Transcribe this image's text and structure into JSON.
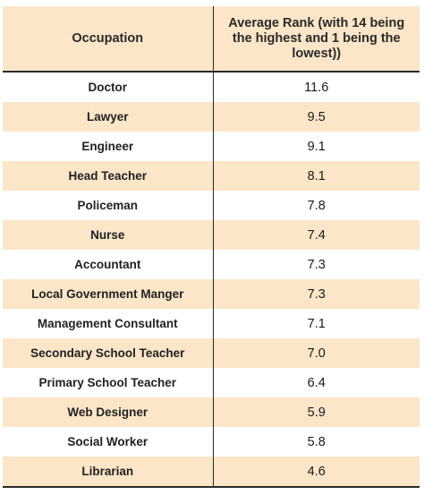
{
  "chart_data": {
    "type": "table",
    "columns": [
      "Occupation",
      "Average Rank (with 14 being the highest and 1 being the lowest))"
    ],
    "rows": [
      {
        "occupation": "Doctor",
        "rank": "11.6"
      },
      {
        "occupation": "Lawyer",
        "rank": "9.5"
      },
      {
        "occupation": "Engineer",
        "rank": "9.1"
      },
      {
        "occupation": "Head Teacher",
        "rank": "8.1"
      },
      {
        "occupation": "Policeman",
        "rank": "7.8"
      },
      {
        "occupation": "Nurse",
        "rank": "7.4"
      },
      {
        "occupation": "Accountant",
        "rank": "7.3"
      },
      {
        "occupation": "Local Government Manger",
        "rank": "7.3"
      },
      {
        "occupation": "Management Consultant",
        "rank": "7.1"
      },
      {
        "occupation": "Secondary School Teacher",
        "rank": "7.0"
      },
      {
        "occupation": "Primary School Teacher",
        "rank": "6.4"
      },
      {
        "occupation": "Web Designer",
        "rank": "5.9"
      },
      {
        "occupation": "Social Worker",
        "rank": "5.8"
      },
      {
        "occupation": "Librarian",
        "rank": "4.6"
      }
    ]
  },
  "colors": {
    "stripe": "#fbe6c8",
    "rule": "#2a2a2a"
  }
}
